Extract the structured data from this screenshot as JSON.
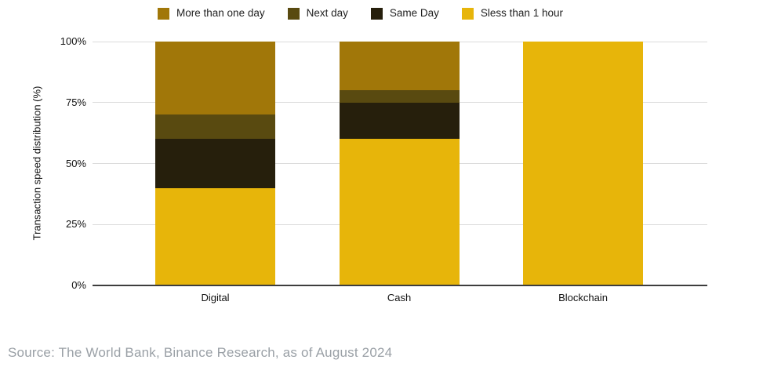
{
  "legend": {
    "items": [
      {
        "label": "More than one day",
        "color": "#A17709"
      },
      {
        "label": "Next day",
        "color": "#594A10"
      },
      {
        "label": "Same Day",
        "color": "#261F0C"
      },
      {
        "label": "Sless than 1 hour",
        "color": "#E7B50A"
      }
    ]
  },
  "chart_data": {
    "type": "bar",
    "stacked": true,
    "title": "",
    "categories": [
      "Digital",
      "Cash",
      "Blockchain"
    ],
    "series": [
      {
        "name": "Sless than 1 hour",
        "color": "#E7B50A",
        "values": [
          40,
          60,
          100
        ]
      },
      {
        "name": "Same Day",
        "color": "#261F0C",
        "values": [
          20,
          15,
          0
        ]
      },
      {
        "name": "Next day",
        "color": "#594A10",
        "values": [
          10,
          5,
          0
        ]
      },
      {
        "name": "More than one day",
        "color": "#A17709",
        "values": [
          30,
          20,
          0
        ]
      }
    ],
    "xlabel": "",
    "ylabel": "Transaction speed distribution (%)",
    "ylim": [
      0,
      100
    ],
    "yticks": [
      {
        "value": 0,
        "label": "0%"
      },
      {
        "value": 25,
        "label": "25%"
      },
      {
        "value": 50,
        "label": "50%"
      },
      {
        "value": 75,
        "label": "75%"
      },
      {
        "value": 100,
        "label": "100%"
      }
    ],
    "grid": true,
    "legend_position": "top"
  },
  "source": {
    "text": "Source: The World Bank, Binance Research, as of August 2024"
  }
}
